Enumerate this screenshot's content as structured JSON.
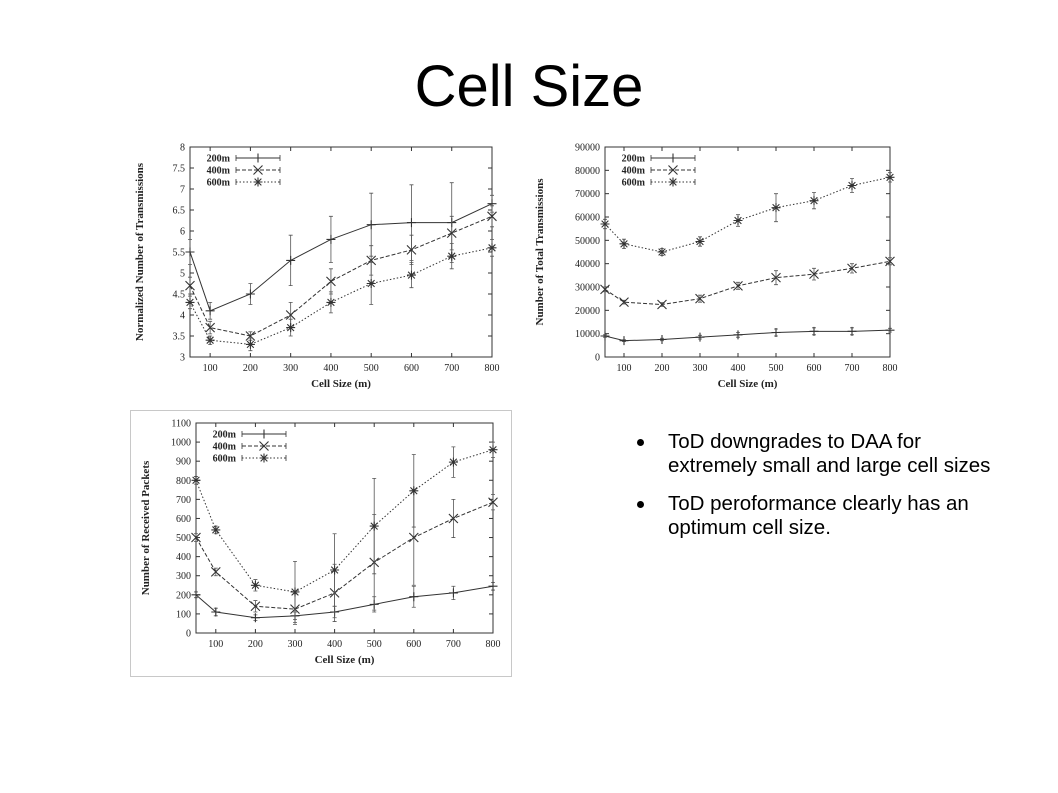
{
  "slide": {
    "title": "Cell Size",
    "bullets": [
      " ToD downgrades to DAA for extremely small and large cell sizes",
      "ToD peroformance clearly has an optimum cell size."
    ]
  },
  "chart_data": [
    {
      "type": "line",
      "xlabel": "Cell Size (m)",
      "ylabel": "Normalized Number of Transmissions",
      "xlim": [
        50,
        800
      ],
      "ylim": [
        3,
        8
      ],
      "xticks": [
        100,
        200,
        300,
        400,
        500,
        600,
        700,
        800
      ],
      "yticks": [
        3,
        3.5,
        4,
        4.5,
        5,
        5.5,
        6,
        6.5,
        7,
        7.5,
        8
      ],
      "legend_position": "top-left",
      "x": [
        50,
        100,
        200,
        300,
        400,
        500,
        600,
        700,
        800
      ],
      "series": [
        {
          "name": "200m",
          "marker": "plus",
          "dash": "solid",
          "values": [
            5.5,
            4.1,
            4.5,
            5.3,
            5.8,
            6.15,
            6.2,
            6.2,
            6.65
          ],
          "err": [
            0.3,
            0.2,
            0.25,
            0.6,
            0.55,
            0.75,
            0.9,
            0.95,
            0.2
          ]
        },
        {
          "name": "400m",
          "marker": "x",
          "dash": "dash",
          "values": [
            4.7,
            3.7,
            3.5,
            4.0,
            4.8,
            5.3,
            5.55,
            5.95,
            6.35
          ],
          "err": [
            0.2,
            0.15,
            0.1,
            0.3,
            0.3,
            0.35,
            0.35,
            0.4,
            0.25
          ]
        },
        {
          "name": "600m",
          "marker": "star",
          "dash": "dot",
          "values": [
            4.3,
            3.4,
            3.3,
            3.7,
            4.3,
            4.75,
            4.95,
            5.4,
            5.6
          ],
          "err": [
            0.15,
            0.1,
            0.15,
            0.2,
            0.25,
            0.5,
            0.3,
            0.3,
            0.2
          ]
        }
      ]
    },
    {
      "type": "line",
      "xlabel": "Cell Size (m)",
      "ylabel": "Number of Total Transmissions",
      "xlim": [
        50,
        800
      ],
      "ylim": [
        0,
        90000
      ],
      "xticks": [
        100,
        200,
        300,
        400,
        500,
        600,
        700,
        800
      ],
      "yticks": [
        0,
        10000,
        20000,
        30000,
        40000,
        50000,
        60000,
        70000,
        80000,
        90000
      ],
      "legend_position": "top-left",
      "x": [
        50,
        100,
        200,
        300,
        400,
        500,
        600,
        700,
        800
      ],
      "series": [
        {
          "name": "200m",
          "marker": "plus",
          "dash": "solid",
          "values": [
            9000,
            7000,
            7500,
            8500,
            9500,
            10500,
            11000,
            11000,
            11500
          ],
          "err": [
            500,
            400,
            500,
            800,
            1000,
            1500,
            1500,
            1500,
            800
          ]
        },
        {
          "name": "400m",
          "marker": "x",
          "dash": "dash",
          "values": [
            29000,
            23500,
            22500,
            25000,
            30500,
            34000,
            35500,
            38000,
            41000
          ],
          "err": [
            1000,
            800,
            800,
            1500,
            1500,
            3000,
            2500,
            2000,
            1500
          ]
        },
        {
          "name": "600m",
          "marker": "star",
          "dash": "dot",
          "values": [
            57000,
            48500,
            45000,
            49500,
            58500,
            64000,
            67000,
            73500,
            77000
          ],
          "err": [
            2000,
            2000,
            1500,
            2000,
            2500,
            6000,
            3500,
            3000,
            2000
          ]
        }
      ]
    },
    {
      "type": "line",
      "xlabel": "Cell Size (m)",
      "ylabel": "Number of Received Packets",
      "xlim": [
        50,
        800
      ],
      "ylim": [
        0,
        1100
      ],
      "xticks": [
        100,
        200,
        300,
        400,
        500,
        600,
        700,
        800
      ],
      "yticks": [
        0,
        100,
        200,
        300,
        400,
        500,
        600,
        700,
        800,
        900,
        1000,
        1100
      ],
      "legend_position": "top-left",
      "x": [
        50,
        100,
        200,
        300,
        400,
        500,
        600,
        700,
        800
      ],
      "series": [
        {
          "name": "200m",
          "marker": "plus",
          "dash": "solid",
          "values": [
            200,
            110,
            80,
            90,
            110,
            150,
            190,
            210,
            245
          ],
          "err": [
            15,
            20,
            15,
            20,
            30,
            40,
            55,
            35,
            20
          ]
        },
        {
          "name": "400m",
          "marker": "x",
          "dash": "dash",
          "values": [
            500,
            320,
            140,
            125,
            210,
            370,
            500,
            600,
            685
          ],
          "err": [
            20,
            20,
            30,
            80,
            150,
            250,
            250,
            100,
            40
          ]
        },
        {
          "name": "600m",
          "marker": "star",
          "dash": "dot",
          "values": [
            800,
            540,
            250,
            215,
            330,
            560,
            745,
            895,
            960
          ],
          "err": [
            20,
            20,
            30,
            160,
            190,
            250,
            190,
            80,
            40
          ]
        }
      ]
    }
  ]
}
